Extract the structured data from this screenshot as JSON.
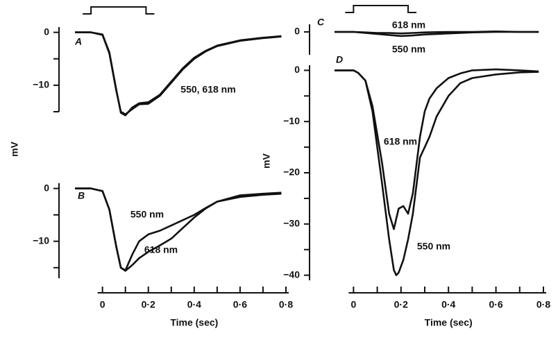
{
  "chart_data": [
    {
      "type": "line",
      "label": "A",
      "ylabel": "mV",
      "stimulus": [
        -0.05,
        0.19
      ],
      "xlim": [
        -0.12,
        0.8
      ],
      "ylim": [
        -15,
        1
      ],
      "yticks": [
        0,
        {
          "value": -10,
          "label": "−10"
        }
      ],
      "yticks_minor": [
        -5,
        -15
      ],
      "x": [
        -0.12,
        -0.05,
        0,
        0.03,
        0.06,
        0.08,
        0.1,
        0.13,
        0.16,
        0.2,
        0.25,
        0.3,
        0.35,
        0.4,
        0.45,
        0.5,
        0.6,
        0.7,
        0.78
      ],
      "annotation": "550, 618 nm",
      "series": [
        {
          "color": "#111",
          "values": [
            0,
            0,
            -0.5,
            -4,
            -11,
            -15,
            -15.5,
            -14.5,
            -13.6,
            -13.5,
            -12,
            -9.5,
            -7,
            -5,
            -3.6,
            -2.6,
            -1.6,
            -1.1,
            -0.8
          ]
        },
        {
          "color": "#111",
          "values": [
            0,
            0,
            -0.4,
            -3.8,
            -10.8,
            -15.2,
            -15.7,
            -14.2,
            -13.4,
            -13.2,
            -11.8,
            -9.3,
            -6.8,
            -4.8,
            -3.5,
            -2.5,
            -1.5,
            -1,
            -0.7
          ]
        }
      ]
    },
    {
      "type": "line",
      "label": "B",
      "xlim": [
        -0.12,
        0.8
      ],
      "ylim": [
        -17,
        1
      ],
      "yticks": [
        0,
        {
          "value": -10,
          "label": "−10"
        }
      ],
      "yticks_minor": [
        -5,
        -15
      ],
      "xticks": [
        0,
        {
          "value": 0.2,
          "label": "0·2"
        },
        {
          "value": 0.4,
          "label": "0·4"
        },
        {
          "value": 0.6,
          "label": "0·6"
        },
        {
          "value": 0.8,
          "label": "0·8"
        }
      ],
      "xticks_minor": [
        0.1,
        0.3,
        0.5,
        0.7
      ],
      "xlabel": "Time (sec)",
      "x": [
        -0.12,
        -0.05,
        0,
        0.03,
        0.06,
        0.08,
        0.1,
        0.13,
        0.16,
        0.2,
        0.25,
        0.3,
        0.35,
        0.4,
        0.45,
        0.5,
        0.6,
        0.7,
        0.78
      ],
      "series": [
        {
          "name": "550 nm",
          "color": "#111",
          "values": [
            0,
            0,
            -0.5,
            -4,
            -11,
            -15,
            -15.5,
            -12.5,
            -10,
            -8.7,
            -8,
            -7,
            -6,
            -5,
            -3.7,
            -2.5,
            -1.3,
            -1,
            -0.8
          ]
        },
        {
          "name": "618 nm",
          "color": "#111",
          "values": [
            0,
            0,
            -0.5,
            -4,
            -11,
            -15,
            -15.6,
            -14.5,
            -13.2,
            -12,
            -10.8,
            -9.5,
            -7.5,
            -5.5,
            -3.8,
            -2.5,
            -1.6,
            -1.2,
            -1
          ]
        }
      ]
    },
    {
      "type": "line",
      "label": "C",
      "stimulus": [
        0,
        0.23
      ],
      "xlim": [
        -0.08,
        0.8
      ],
      "ylim": [
        -4.5,
        1.5
      ],
      "yticks": [
        0
      ],
      "x": [
        -0.08,
        0,
        0.05,
        0.1,
        0.15,
        0.2,
        0.25,
        0.3,
        0.4,
        0.5,
        0.6,
        0.7,
        0.78
      ],
      "series": [
        {
          "name": "618 nm",
          "color": "#111",
          "values": [
            0,
            0,
            -0.1,
            -0.2,
            -0.2,
            -0.3,
            -0.2,
            -0.1,
            0,
            0,
            0.1,
            0,
            0
          ]
        },
        {
          "name": "550 nm",
          "color": "#111",
          "values": [
            0,
            0,
            -0.2,
            -0.4,
            -0.6,
            -0.8,
            -0.7,
            -0.5,
            -0.3,
            -0.1,
            0,
            0,
            0
          ]
        }
      ]
    },
    {
      "type": "line",
      "label": "D",
      "ylabel": "mV",
      "xlim": [
        -0.08,
        0.8
      ],
      "ylim": [
        -41,
        1
      ],
      "yticks": [
        0,
        {
          "value": -10,
          "label": "−10"
        },
        {
          "value": -20,
          "label": "−20"
        },
        {
          "value": -30,
          "label": "−30"
        },
        {
          "value": -40,
          "label": "−40"
        }
      ],
      "yticks_minor": [
        -5,
        -15,
        -25,
        -35
      ],
      "xticks": [
        0,
        {
          "value": 0.2,
          "label": "0·2"
        },
        {
          "value": 0.4,
          "label": "0·4"
        },
        {
          "value": 0.6,
          "label": "0·6"
        },
        {
          "value": 0.8,
          "label": "0·8"
        }
      ],
      "xticks_minor": [
        0.1,
        0.3,
        0.5,
        0.7
      ],
      "xlabel": "Time (sec)",
      "x": [
        -0.08,
        0,
        0.02,
        0.05,
        0.08,
        0.12,
        0.15,
        0.17,
        0.18,
        0.19,
        0.21,
        0.23,
        0.25,
        0.28,
        0.3,
        0.32,
        0.35,
        0.4,
        0.45,
        0.5,
        0.6,
        0.7,
        0.78
      ],
      "series": [
        {
          "name": "618 nm",
          "color": "#111",
          "values": [
            0,
            0,
            -0.5,
            -2,
            -7,
            -18,
            -28,
            -31,
            -29,
            -27,
            -26.5,
            -28,
            -24,
            -13,
            -8,
            -5.5,
            -3.5,
            -1.5,
            -0.6,
            0,
            0.2,
            0,
            -0.2
          ]
        },
        {
          "name": "550 nm",
          "color": "#111",
          "values": [
            0,
            0,
            -0.5,
            -2,
            -8,
            -22,
            -33,
            -39,
            -40,
            -39.5,
            -37,
            -33,
            -28,
            -17,
            -15,
            -13,
            -9,
            -5,
            -2.5,
            -1.5,
            -0.8,
            -0.4,
            -0.3
          ]
        }
      ]
    }
  ]
}
